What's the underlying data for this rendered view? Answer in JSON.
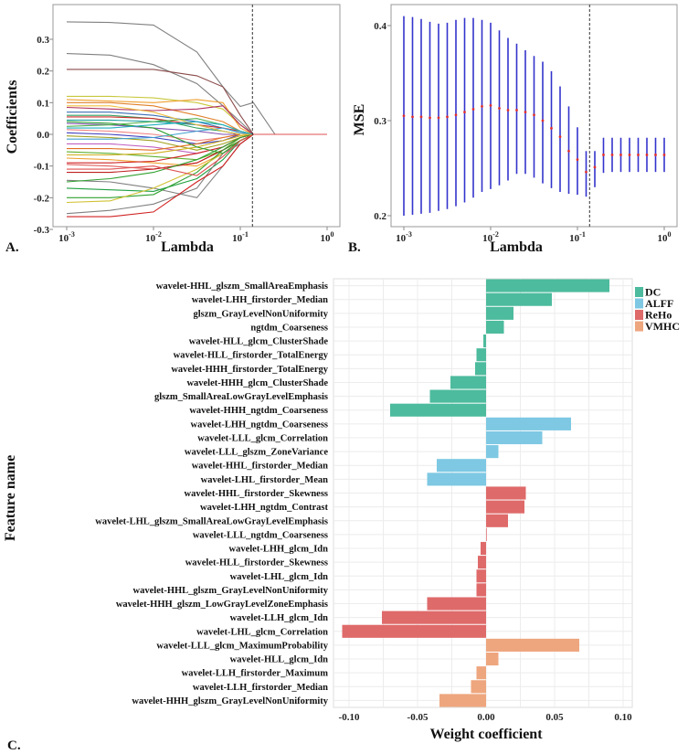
{
  "chart_data": [
    {
      "panel_label": "A.",
      "type": "line",
      "xlabel": "Lambda",
      "ylabel": "Coefficients",
      "xscale": "log10",
      "xlim_log10": [
        -3,
        0
      ],
      "ylim": [
        -0.3,
        0.36
      ],
      "x_ticks": [
        "10-3",
        "10-2",
        "10-1",
        "100"
      ],
      "y_ticks": [
        "0.3",
        "0.2",
        "0.1",
        "0.0",
        "-0.1",
        "-0.2",
        "-0.3"
      ],
      "y_tick_values": [
        0.3,
        0.2,
        0.1,
        0.0,
        -0.1,
        -0.2,
        -0.3
      ],
      "selected_lambda": 0.138,
      "x_log10": [
        -3,
        -2.5,
        -2,
        -1.5,
        -1.2,
        -1,
        -0.85,
        -0.6,
        0
      ],
      "series": [
        {
          "color": "#808080",
          "values": [
            0.355,
            0.353,
            0.345,
            0.26,
            0.15,
            0.088,
            0.1,
            0,
            0
          ]
        },
        {
          "color": "#808080",
          "values": [
            0.255,
            0.25,
            0.22,
            0.16,
            0.09,
            0.04,
            0,
            0,
            0
          ]
        },
        {
          "color": "#8b4a4a",
          "values": [
            0.205,
            0.205,
            0.205,
            0.185,
            0.15,
            0.06,
            0,
            0,
            0
          ]
        },
        {
          "color": "#c8c83c",
          "values": [
            0.12,
            0.12,
            0.115,
            0.1,
            0.08,
            0.03,
            0,
            0,
            0
          ]
        },
        {
          "color": "#f0a030",
          "values": [
            0.11,
            0.105,
            0.1,
            0.11,
            0.1,
            0.02,
            0,
            0,
            0
          ]
        },
        {
          "color": "#e0802a",
          "values": [
            0.1,
            0.1,
            0.09,
            0.06,
            0.04,
            0.01,
            0,
            0,
            0
          ]
        },
        {
          "color": "#b03060",
          "values": [
            0.085,
            0.08,
            0.075,
            0.08,
            0.09,
            0.03,
            0,
            0,
            0
          ]
        },
        {
          "color": "#3b6fb6",
          "values": [
            0.07,
            0.07,
            0.06,
            0.04,
            0.02,
            0.005,
            0,
            0,
            0
          ]
        },
        {
          "color": "#30a060",
          "values": [
            0.06,
            0.06,
            0.05,
            0.02,
            0.01,
            0,
            0,
            0,
            0
          ]
        },
        {
          "color": "#d03030",
          "values": [
            0.055,
            0.055,
            0.05,
            0.03,
            0.02,
            0.01,
            0,
            0,
            0
          ]
        },
        {
          "color": "#20a0a0",
          "values": [
            0.045,
            0.045,
            0.04,
            0.03,
            0.01,
            0,
            0,
            0,
            0
          ]
        },
        {
          "color": "#8050b0",
          "values": [
            0.035,
            0.03,
            0.02,
            0.01,
            0,
            0,
            0,
            0,
            0
          ]
        },
        {
          "color": "#50b050",
          "values": [
            0.025,
            0.03,
            0.04,
            0.05,
            0.03,
            0.01,
            0,
            0,
            0
          ]
        },
        {
          "color": "#f08080",
          "values": [
            0.015,
            0.01,
            0.0,
            -0.02,
            -0.01,
            0,
            0,
            0,
            0
          ]
        },
        {
          "color": "#4040c0",
          "values": [
            0.005,
            0.0,
            -0.01,
            -0.03,
            -0.02,
            0,
            0,
            0,
            0
          ]
        },
        {
          "color": "#a0a020",
          "values": [
            -0.005,
            -0.01,
            -0.02,
            -0.05,
            -0.03,
            -0.01,
            0,
            0,
            0
          ]
        },
        {
          "color": "#40a0d0",
          "values": [
            -0.015,
            -0.015,
            -0.01,
            0.01,
            0.02,
            0.005,
            0,
            0,
            0
          ]
        },
        {
          "color": "#c060c0",
          "values": [
            -0.03,
            -0.03,
            -0.04,
            -0.06,
            -0.04,
            -0.01,
            0,
            0,
            0
          ]
        },
        {
          "color": "#e07020",
          "values": [
            -0.045,
            -0.045,
            -0.05,
            -0.03,
            -0.01,
            0,
            0,
            0,
            0
          ]
        },
        {
          "color": "#60b030",
          "values": [
            -0.055,
            -0.06,
            -0.07,
            -0.08,
            -0.05,
            -0.01,
            0,
            0,
            0
          ]
        },
        {
          "color": "#d0b020",
          "values": [
            -0.065,
            -0.065,
            -0.06,
            -0.04,
            -0.02,
            -0.005,
            0,
            0,
            0
          ]
        },
        {
          "color": "#f0a030",
          "values": [
            -0.075,
            -0.08,
            -0.09,
            -0.1,
            -0.06,
            -0.02,
            0,
            0,
            0
          ]
        },
        {
          "color": "#d02020",
          "values": [
            -0.09,
            -0.09,
            -0.085,
            -0.06,
            -0.04,
            -0.01,
            0,
            0,
            0
          ]
        },
        {
          "color": "#e06060",
          "values": [
            -0.095,
            -0.1,
            -0.11,
            -0.09,
            -0.05,
            -0.02,
            0,
            0,
            0
          ]
        },
        {
          "color": "#c02020",
          "values": [
            -0.12,
            -0.12,
            -0.11,
            -0.09,
            -0.05,
            -0.02,
            0,
            0,
            0
          ]
        },
        {
          "color": "#808080",
          "values": [
            -0.145,
            -0.15,
            -0.17,
            -0.2,
            -0.1,
            -0.03,
            0,
            0,
            0
          ]
        },
        {
          "color": "#30a030",
          "values": [
            -0.15,
            -0.14,
            -0.12,
            -0.08,
            -0.04,
            -0.01,
            0,
            0,
            0
          ]
        },
        {
          "color": "#20a040",
          "values": [
            -0.17,
            -0.175,
            -0.18,
            -0.14,
            -0.08,
            -0.02,
            0,
            0,
            0
          ]
        },
        {
          "color": "#30a030",
          "values": [
            -0.2,
            -0.2,
            -0.19,
            -0.12,
            -0.05,
            -0.02,
            0,
            0,
            0
          ]
        },
        {
          "color": "#d0c030",
          "values": [
            -0.215,
            -0.21,
            -0.17,
            -0.11,
            -0.06,
            -0.02,
            0,
            0,
            0
          ]
        },
        {
          "color": "#808080",
          "values": [
            -0.25,
            -0.24,
            -0.22,
            -0.17,
            -0.06,
            -0.03,
            0,
            0,
            0
          ]
        },
        {
          "color": "#d02020",
          "values": [
            -0.26,
            -0.26,
            -0.245,
            -0.15,
            -0.1,
            -0.03,
            0,
            0,
            0
          ]
        },
        {
          "color": "#30a030",
          "values": [
            0.04,
            0.035,
            0.02,
            -0.04,
            -0.06,
            -0.02,
            0,
            0,
            0
          ]
        },
        {
          "color": "#f0c040",
          "values": [
            0.09,
            0.09,
            0.07,
            0.03,
            0.01,
            0,
            0,
            0,
            0
          ]
        },
        {
          "color": "#20b0c0",
          "values": [
            0.02,
            0.02,
            0.03,
            0.04,
            0.03,
            0.01,
            0,
            0,
            0
          ]
        },
        {
          "color": "#e05050",
          "values": [
            -0.11,
            -0.11,
            -0.1,
            -0.13,
            -0.07,
            -0.02,
            0,
            0,
            0
          ]
        }
      ]
    },
    {
      "panel_label": "B.",
      "type": "scatter",
      "xlabel": "Lambda",
      "ylabel": "MSE",
      "xscale": "log10",
      "xlim_log10": [
        -3,
        0
      ],
      "ylim": [
        0.19,
        0.415
      ],
      "x_ticks": [
        "10-3",
        "10-2",
        "10-1",
        "100"
      ],
      "y_ticks": [
        "0.4",
        "0.3",
        "0.2"
      ],
      "y_tick_values": [
        0.4,
        0.3,
        0.2
      ],
      "selected_lambda": 0.138,
      "colors": {
        "mean": "#e03030",
        "error_bar": "#3333cc"
      },
      "x_log10": [
        -3.0,
        -2.9,
        -2.8,
        -2.7,
        -2.6,
        -2.5,
        -2.4,
        -2.3,
        -2.2,
        -2.1,
        -2.0,
        -1.9,
        -1.8,
        -1.7,
        -1.6,
        -1.5,
        -1.4,
        -1.3,
        -1.2,
        -1.1,
        -1.0,
        -0.9,
        -0.8,
        -0.7,
        -0.6,
        -0.5,
        -0.4,
        -0.3,
        -0.2,
        -0.1,
        0.0
      ],
      "mean": [
        0.305,
        0.304,
        0.304,
        0.303,
        0.303,
        0.304,
        0.306,
        0.309,
        0.312,
        0.315,
        0.316,
        0.313,
        0.311,
        0.311,
        0.309,
        0.306,
        0.3,
        0.292,
        0.283,
        0.268,
        0.259,
        0.246,
        0.251,
        0.264,
        0.264,
        0.264,
        0.264,
        0.264,
        0.264,
        0.264,
        0.264
      ],
      "upper": [
        0.41,
        0.409,
        0.407,
        0.404,
        0.402,
        0.403,
        0.406,
        0.408,
        0.408,
        0.406,
        0.403,
        0.395,
        0.387,
        0.381,
        0.374,
        0.368,
        0.362,
        0.352,
        0.336,
        0.315,
        0.293,
        0.268,
        0.268,
        0.282,
        0.282,
        0.282,
        0.282,
        0.282,
        0.282,
        0.282,
        0.282
      ],
      "lower": [
        0.2,
        0.201,
        0.202,
        0.203,
        0.205,
        0.207,
        0.21,
        0.214,
        0.219,
        0.225,
        0.228,
        0.232,
        0.237,
        0.244,
        0.244,
        0.24,
        0.234,
        0.229,
        0.225,
        0.223,
        0.222,
        0.22,
        0.23,
        0.245,
        0.246,
        0.246,
        0.246,
        0.246,
        0.246,
        0.246,
        0.246
      ]
    },
    {
      "panel_label": "C.",
      "type": "bar",
      "orientation": "horizontal",
      "xlabel": "Weight coefficient",
      "ylabel": "Feature name",
      "xlim": [
        -0.11,
        0.1
      ],
      "x_ticks": [
        "-0.10",
        "-0.05",
        "0.00",
        "0.05",
        "0.10"
      ],
      "x_tick_values": [
        -0.1,
        -0.05,
        0.0,
        0.05,
        0.1
      ],
      "grid": true,
      "legend_position": "right",
      "legend": [
        {
          "name": "DC",
          "color": "#4dbb9d"
        },
        {
          "name": "ALFF",
          "color": "#7ec8e3"
        },
        {
          "name": "ReHo",
          "color": "#df6a6a"
        },
        {
          "name": "VMHC",
          "color": "#eea67e"
        }
      ],
      "bars": [
        {
          "feature": "wavelet-HHL_glszm_SmallAreaEmphasis",
          "group": "DC",
          "value": 0.09
        },
        {
          "feature": "wavelet-LHH_firstorder_Median",
          "group": "DC",
          "value": 0.048
        },
        {
          "feature": "glszm_GrayLevelNonUniformity",
          "group": "DC",
          "value": 0.02
        },
        {
          "feature": "ngtdm_Coarseness",
          "group": "DC",
          "value": 0.013
        },
        {
          "feature": "wavelet-HLL_glcm_ClusterShade",
          "group": "DC",
          "value": -0.002
        },
        {
          "feature": "wavelet-HLL_firstorder_TotalEnergy",
          "group": "DC",
          "value": -0.007
        },
        {
          "feature": "wavelet-HHH_firstorder_TotalEnergy",
          "group": "DC",
          "value": -0.008
        },
        {
          "feature": "wavelet-HHH_glcm_ClusterShade",
          "group": "DC",
          "value": -0.026
        },
        {
          "feature": "glszm_SmallAreaLowGrayLevelEmphasis",
          "group": "DC",
          "value": -0.041
        },
        {
          "feature": "wavelet-HHH_ngtdm_Coarseness",
          "group": "DC",
          "value": -0.07
        },
        {
          "feature": "wavelet-LHH_ngtdm_Coarseness",
          "group": "ALFF",
          "value": 0.062
        },
        {
          "feature": "wavelet-LLL_glcm_Correlation",
          "group": "ALFF",
          "value": 0.041
        },
        {
          "feature": "wavelet-LLL_glszm_ZoneVariance",
          "group": "ALFF",
          "value": 0.009
        },
        {
          "feature": "wavelet-HHL_firstorder_Median",
          "group": "ALFF",
          "value": -0.036
        },
        {
          "feature": "wavelet-LHL_firstorder_Mean",
          "group": "ALFF",
          "value": -0.043
        },
        {
          "feature": "wavelet-HHL_firstorder_Skewness",
          "group": "ReHo",
          "value": 0.029
        },
        {
          "feature": "wavelet-LHH_ngtdm_Contrast",
          "group": "ReHo",
          "value": 0.028
        },
        {
          "feature": "wavelet-LHL_glszm_SmallAreaLowGrayLevelEmphasis",
          "group": "ReHo",
          "value": 0.016
        },
        {
          "feature": "wavelet-LLL_ngtdm_Coarseness",
          "group": "ReHo",
          "value": 0.0005
        },
        {
          "feature": "wavelet-LHH_glcm_Idn",
          "group": "ReHo",
          "value": -0.004
        },
        {
          "feature": "wavelet-HLL_firstorder_Skewness",
          "group": "ReHo",
          "value": -0.006
        },
        {
          "feature": "wavelet-LHL_glcm_Idn",
          "group": "ReHo",
          "value": -0.007
        },
        {
          "feature": "wavelet-HHL_glszm_GrayLevelNonUniformity",
          "group": "ReHo",
          "value": -0.007
        },
        {
          "feature": "wavelet-HHH_glszm_LowGrayLevelZoneEmphasis",
          "group": "ReHo",
          "value": -0.043
        },
        {
          "feature": "wavelet-LLH_glcm_Idn",
          "group": "ReHo",
          "value": -0.076
        },
        {
          "feature": "wavelet-LHL_glcm_Correlation",
          "group": "ReHo",
          "value": -0.105
        },
        {
          "feature": "wavelet-LLL_glcm_MaximumProbability",
          "group": "VMHC",
          "value": 0.068
        },
        {
          "feature": "wavelet-HLL_glcm_Idn",
          "group": "VMHC",
          "value": 0.009
        },
        {
          "feature": "wavelet-LLH_firstorder_Maximum",
          "group": "VMHC",
          "value": -0.007
        },
        {
          "feature": "wavelet-LLH_firstorder_Median",
          "group": "VMHC",
          "value": -0.011
        },
        {
          "feature": "wavelet-HHH_glszm_GrayLevelNonUniformity",
          "group": "VMHC",
          "value": -0.034
        }
      ]
    }
  ]
}
